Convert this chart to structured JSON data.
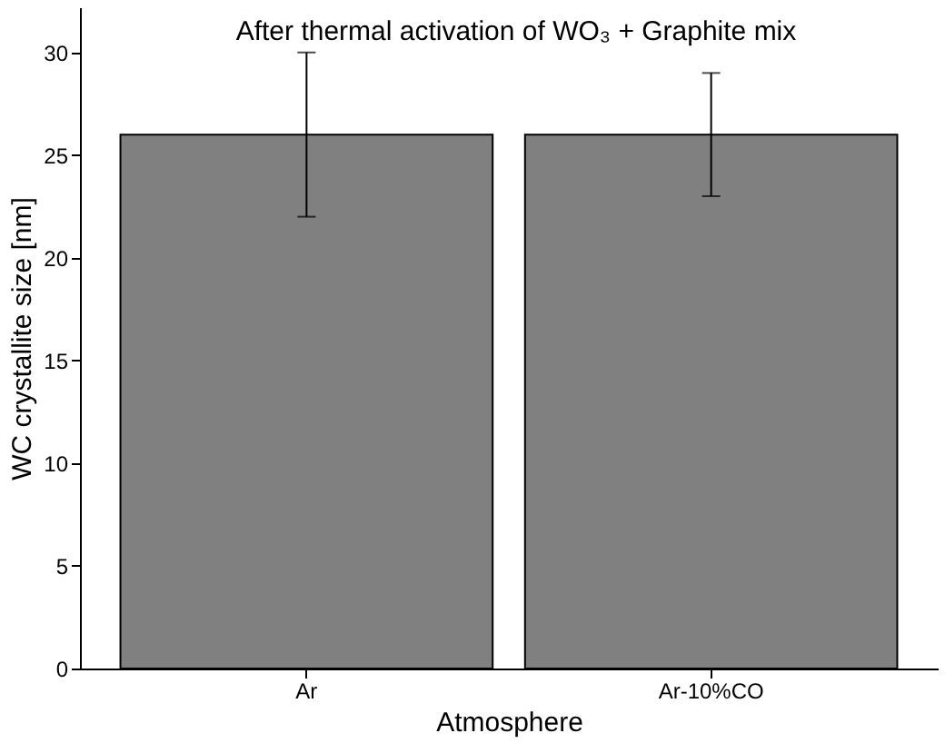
{
  "chart_data": {
    "type": "bar",
    "title": "After thermal activation of WO₃ + Graphite mix",
    "xlabel": "Atmosphere",
    "ylabel": "WC crystallite size [nm]",
    "categories": [
      "Ar",
      "Ar-10%CO"
    ],
    "values": [
      26,
      26
    ],
    "color": "#808080",
    "errors": [
      [
        22,
        30
      ],
      [
        23,
        29
      ]
    ],
    "ylim": [
      0,
      32.2
    ],
    "yticks": [
      0,
      5,
      10,
      15,
      20,
      25,
      30
    ],
    "grid": false
  }
}
